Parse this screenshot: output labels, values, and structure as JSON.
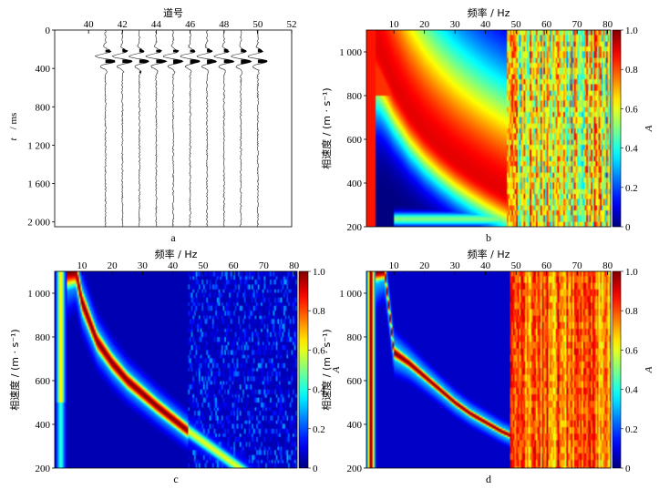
{
  "figure": {
    "panels": [
      "a",
      "b",
      "c",
      "d"
    ]
  },
  "chart_data": [
    {
      "id": "a",
      "type": "seismogram",
      "caption": "a",
      "xlabel": "道号",
      "ylabel_symbol": "t",
      "ylabel_unit": "/ ms",
      "xticks": [
        "40",
        "42",
        "44",
        "46",
        "48",
        "50",
        "52"
      ],
      "xlim": [
        38,
        52
      ],
      "yticks": [
        "0",
        "400",
        "800",
        "1 200",
        "1 600",
        "2 000"
      ],
      "ytick_values": [
        0,
        400,
        800,
        1200,
        1600,
        2000
      ],
      "ylim": [
        0,
        2050
      ],
      "traces": [
        41,
        42,
        43,
        44,
        45,
        46,
        47,
        48,
        49,
        50
      ],
      "wavelet_center_ms": 300,
      "wavelet_halfwidth_ms": 140
    },
    {
      "id": "b",
      "type": "heatmap",
      "caption": "b",
      "xlabel": "频率 / Hz",
      "ylabel": "相速度 / (m · s⁻¹)",
      "xticks": [
        "10",
        "20",
        "30",
        "40",
        "50",
        "60",
        "70",
        "80"
      ],
      "xtick_values": [
        10,
        20,
        30,
        40,
        50,
        60,
        70,
        80
      ],
      "xlim": [
        1,
        81
      ],
      "yticks": [
        "200",
        "400",
        "600",
        "800",
        "1 000"
      ],
      "ytick_values": [
        200,
        400,
        600,
        800,
        1000
      ],
      "ylim": [
        200,
        1100
      ],
      "colorbar_label": "A",
      "colorbar_ticks": [
        "0",
        "0.2",
        "0.4",
        "0.6",
        "0.8",
        "1.0"
      ],
      "colorbar_values": [
        0,
        0.2,
        0.4,
        0.6,
        0.8,
        1.0
      ],
      "noise_start_hz": 47,
      "dispersion_curve": [
        {
          "f": 1,
          "v": 1100
        },
        {
          "f": 5,
          "v": 1000
        },
        {
          "f": 10,
          "v": 840
        },
        {
          "f": 15,
          "v": 720
        },
        {
          "f": 20,
          "v": 630
        },
        {
          "f": 25,
          "v": 560
        },
        {
          "f": 30,
          "v": 500
        },
        {
          "f": 35,
          "v": 450
        },
        {
          "f": 40,
          "v": 405
        },
        {
          "f": 45,
          "v": 365
        },
        {
          "f": 50,
          "v": 330
        }
      ]
    },
    {
      "id": "c",
      "type": "heatmap",
      "caption": "c",
      "xlabel": "频率 / Hz",
      "ylabel": "相速度 / (m · s⁻¹)",
      "xticks": [
        "10",
        "20",
        "30",
        "40",
        "50",
        "60",
        "70",
        "80"
      ],
      "xtick_values": [
        10,
        20,
        30,
        40,
        50,
        60,
        70,
        80
      ],
      "xlim": [
        1,
        81
      ],
      "yticks": [
        "200",
        "400",
        "600",
        "800",
        "1 000"
      ],
      "ytick_values": [
        200,
        400,
        600,
        800,
        1000
      ],
      "ylim": [
        200,
        1100
      ],
      "colorbar_label": "A",
      "colorbar_ticks": [
        "0",
        "0.2",
        "0.4",
        "0.6",
        "0.8",
        "1.0"
      ],
      "colorbar_values": [
        0,
        0.2,
        0.4,
        0.6,
        0.8,
        1.0
      ],
      "dispersion_curve": [
        {
          "f": 8,
          "v": 1100
        },
        {
          "f": 10,
          "v": 960
        },
        {
          "f": 15,
          "v": 780
        },
        {
          "f": 20,
          "v": 680
        },
        {
          "f": 25,
          "v": 600
        },
        {
          "f": 30,
          "v": 540
        },
        {
          "f": 35,
          "v": 480
        },
        {
          "f": 40,
          "v": 425
        },
        {
          "f": 45,
          "v": 370
        },
        {
          "f": 50,
          "v": 320
        }
      ]
    },
    {
      "id": "d",
      "type": "heatmap",
      "caption": "d",
      "xlabel": "频率 / Hz",
      "ylabel": "相速度 / (m · s⁻¹)",
      "xticks": [
        "10",
        "20",
        "30",
        "40",
        "50",
        "60",
        "70",
        "80"
      ],
      "xtick_values": [
        10,
        20,
        30,
        40,
        50,
        60,
        70,
        80
      ],
      "xlim": [
        1,
        81
      ],
      "yticks": [
        "200",
        "400",
        "600",
        "800",
        "1 000"
      ],
      "ytick_values": [
        200,
        400,
        600,
        800,
        1000
      ],
      "ylim": [
        200,
        1100
      ],
      "colorbar_label": "A",
      "colorbar_ticks": [
        "0",
        "0.2",
        "0.4",
        "0.6",
        "0.8",
        "1.0"
      ],
      "colorbar_values": [
        0,
        0.2,
        0.4,
        0.6,
        0.8,
        1.0
      ],
      "noise_start_hz": 48,
      "dispersion_curve": [
        {
          "f": 7,
          "v": 1100
        },
        {
          "f": 10,
          "v": 730
        },
        {
          "f": 15,
          "v": 680
        },
        {
          "f": 20,
          "v": 620
        },
        {
          "f": 25,
          "v": 560
        },
        {
          "f": 30,
          "v": 500
        },
        {
          "f": 35,
          "v": 450
        },
        {
          "f": 40,
          "v": 410
        },
        {
          "f": 45,
          "v": 370
        },
        {
          "f": 48,
          "v": 350
        }
      ]
    }
  ]
}
